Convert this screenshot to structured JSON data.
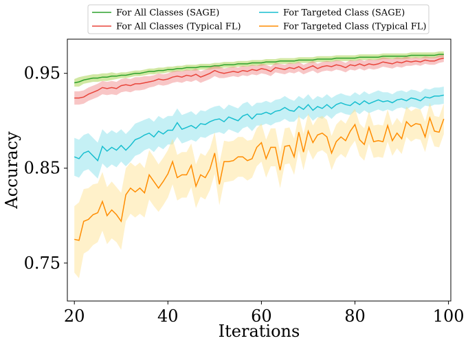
{
  "chart_data": {
    "type": "line",
    "xlabel": "Iterations",
    "ylabel": "Accuracy",
    "xlim": [
      18.5,
      100.5
    ],
    "ylim": [
      0.71,
      0.986
    ],
    "xticks": [
      20,
      40,
      60,
      80,
      100
    ],
    "yticks": [
      0.75,
      0.85,
      0.95
    ],
    "ytick_labels": [
      "0.75",
      "0.85",
      "0.95"
    ],
    "legend_position": "top (above plot), 2 columns",
    "grid": false,
    "x_start": 20,
    "series": [
      {
        "name": "For All Classes (SAGE)",
        "color": "#2ca02c",
        "band_color": "#9acd32",
        "values": [
          0.94,
          0.941,
          0.943,
          0.944,
          0.945,
          0.945,
          0.946,
          0.946,
          0.947,
          0.947,
          0.948,
          0.948,
          0.949,
          0.95,
          0.95,
          0.951,
          0.952,
          0.952,
          0.953,
          0.953,
          0.954,
          0.954,
          0.955,
          0.955,
          0.956,
          0.956,
          0.956,
          0.957,
          0.957,
          0.957,
          0.958,
          0.958,
          0.959,
          0.959,
          0.959,
          0.96,
          0.96,
          0.96,
          0.961,
          0.961,
          0.961,
          0.962,
          0.962,
          0.962,
          0.963,
          0.963,
          0.963,
          0.963,
          0.964,
          0.964,
          0.964,
          0.964,
          0.965,
          0.965,
          0.965,
          0.965,
          0.966,
          0.966,
          0.966,
          0.966,
          0.966,
          0.967,
          0.967,
          0.967,
          0.967,
          0.967,
          0.968,
          0.968,
          0.968,
          0.968,
          0.968,
          0.968,
          0.969,
          0.969,
          0.969,
          0.969,
          0.969,
          0.969,
          0.97,
          0.97
        ],
        "band": [
          0.004,
          0.005,
          0.004,
          0.004,
          0.004,
          0.004,
          0.004,
          0.004,
          0.004,
          0.003,
          0.003,
          0.003,
          0.003,
          0.003,
          0.003,
          0.003,
          0.003,
          0.003,
          0.003,
          0.003,
          0.003,
          0.003,
          0.003,
          0.003,
          0.003,
          0.003,
          0.003,
          0.003,
          0.003,
          0.003,
          0.003,
          0.003,
          0.003,
          0.003,
          0.003,
          0.003,
          0.003,
          0.003,
          0.003,
          0.003,
          0.003,
          0.003,
          0.003,
          0.003,
          0.003,
          0.003,
          0.003,
          0.003,
          0.003,
          0.003,
          0.003,
          0.003,
          0.003,
          0.003,
          0.003,
          0.003,
          0.003,
          0.003,
          0.003,
          0.003,
          0.003,
          0.003,
          0.003,
          0.003,
          0.003,
          0.003,
          0.003,
          0.003,
          0.003,
          0.003,
          0.003,
          0.003,
          0.003,
          0.003,
          0.003,
          0.003,
          0.003,
          0.003,
          0.003,
          0.003
        ]
      },
      {
        "name": "For All Classes (Typical FL)",
        "color": "#e8443a",
        "band_color": "#f08080",
        "values": [
          0.924,
          0.924,
          0.925,
          0.928,
          0.93,
          0.932,
          0.935,
          0.934,
          0.935,
          0.934,
          0.937,
          0.938,
          0.937,
          0.939,
          0.939,
          0.94,
          0.941,
          0.942,
          0.944,
          0.943,
          0.944,
          0.946,
          0.947,
          0.946,
          0.948,
          0.947,
          0.949,
          0.946,
          0.948,
          0.95,
          0.953,
          0.951,
          0.95,
          0.951,
          0.952,
          0.951,
          0.953,
          0.952,
          0.954,
          0.953,
          0.955,
          0.954,
          0.952,
          0.956,
          0.955,
          0.954,
          0.956,
          0.955,
          0.957,
          0.954,
          0.956,
          0.958,
          0.955,
          0.957,
          0.958,
          0.957,
          0.959,
          0.958,
          0.956,
          0.959,
          0.958,
          0.96,
          0.958,
          0.96,
          0.959,
          0.96,
          0.962,
          0.961,
          0.96,
          0.962,
          0.961,
          0.963,
          0.962,
          0.963,
          0.962,
          0.964,
          0.963,
          0.963,
          0.965,
          0.966
        ],
        "band": [
          0.007,
          0.007,
          0.007,
          0.007,
          0.007,
          0.007,
          0.007,
          0.007,
          0.007,
          0.007,
          0.007,
          0.007,
          0.007,
          0.007,
          0.007,
          0.007,
          0.006,
          0.006,
          0.006,
          0.006,
          0.006,
          0.006,
          0.006,
          0.006,
          0.006,
          0.006,
          0.006,
          0.006,
          0.006,
          0.006,
          0.006,
          0.006,
          0.005,
          0.005,
          0.005,
          0.005,
          0.005,
          0.005,
          0.005,
          0.005,
          0.005,
          0.005,
          0.005,
          0.005,
          0.005,
          0.005,
          0.005,
          0.005,
          0.005,
          0.005,
          0.005,
          0.005,
          0.005,
          0.005,
          0.005,
          0.005,
          0.005,
          0.005,
          0.005,
          0.005,
          0.005,
          0.005,
          0.005,
          0.005,
          0.005,
          0.005,
          0.005,
          0.005,
          0.005,
          0.005,
          0.005,
          0.005,
          0.004,
          0.004,
          0.004,
          0.004,
          0.004,
          0.004,
          0.004,
          0.004
        ]
      },
      {
        "name": "For Targeted Class (SAGE)",
        "color": "#17becf",
        "band_color": "#7fdde8",
        "values": [
          0.862,
          0.86,
          0.866,
          0.868,
          0.863,
          0.858,
          0.873,
          0.868,
          0.872,
          0.869,
          0.874,
          0.869,
          0.874,
          0.88,
          0.882,
          0.885,
          0.887,
          0.883,
          0.889,
          0.886,
          0.89,
          0.89,
          0.898,
          0.891,
          0.893,
          0.895,
          0.892,
          0.897,
          0.896,
          0.899,
          0.901,
          0.902,
          0.899,
          0.904,
          0.902,
          0.9,
          0.905,
          0.907,
          0.902,
          0.907,
          0.907,
          0.909,
          0.907,
          0.91,
          0.911,
          0.914,
          0.911,
          0.91,
          0.915,
          0.912,
          0.917,
          0.911,
          0.915,
          0.913,
          0.917,
          0.913,
          0.917,
          0.919,
          0.917,
          0.916,
          0.92,
          0.917,
          0.921,
          0.918,
          0.92,
          0.922,
          0.92,
          0.921,
          0.919,
          0.922,
          0.923,
          0.921,
          0.924,
          0.923,
          0.921,
          0.925,
          0.924,
          0.926,
          0.926,
          0.927
        ],
        "band": [
          0.02,
          0.02,
          0.019,
          0.019,
          0.019,
          0.019,
          0.018,
          0.018,
          0.018,
          0.018,
          0.017,
          0.017,
          0.017,
          0.017,
          0.017,
          0.016,
          0.016,
          0.016,
          0.016,
          0.016,
          0.015,
          0.015,
          0.015,
          0.015,
          0.015,
          0.015,
          0.014,
          0.014,
          0.014,
          0.014,
          0.014,
          0.014,
          0.013,
          0.013,
          0.013,
          0.013,
          0.013,
          0.013,
          0.013,
          0.012,
          0.012,
          0.012,
          0.012,
          0.012,
          0.012,
          0.012,
          0.012,
          0.011,
          0.011,
          0.011,
          0.011,
          0.011,
          0.011,
          0.011,
          0.011,
          0.011,
          0.01,
          0.01,
          0.01,
          0.01,
          0.01,
          0.01,
          0.01,
          0.01,
          0.01,
          0.01,
          0.01,
          0.009,
          0.009,
          0.009,
          0.009,
          0.009,
          0.009,
          0.009,
          0.009,
          0.009,
          0.009,
          0.009,
          0.009,
          0.009
        ]
      },
      {
        "name": "For Targeted Class (Typical FL)",
        "color": "#ff8c00",
        "band_color": "#ffe08a",
        "values": [
          0.775,
          0.774,
          0.794,
          0.796,
          0.801,
          0.803,
          0.815,
          0.8,
          0.806,
          0.801,
          0.794,
          0.822,
          0.829,
          0.825,
          0.829,
          0.824,
          0.843,
          0.836,
          0.829,
          0.836,
          0.844,
          0.857,
          0.84,
          0.843,
          0.843,
          0.853,
          0.831,
          0.843,
          0.84,
          0.849,
          0.866,
          0.833,
          0.857,
          0.857,
          0.858,
          0.862,
          0.862,
          0.858,
          0.86,
          0.872,
          0.877,
          0.86,
          0.872,
          0.872,
          0.848,
          0.873,
          0.874,
          0.862,
          0.888,
          0.867,
          0.889,
          0.877,
          0.885,
          0.887,
          0.883,
          0.866,
          0.878,
          0.883,
          0.879,
          0.889,
          0.896,
          0.88,
          0.875,
          0.893,
          0.878,
          0.879,
          0.878,
          0.895,
          0.879,
          0.887,
          0.881,
          0.899,
          0.894,
          0.897,
          0.896,
          0.883,
          0.903,
          0.889,
          0.888,
          0.902
        ],
        "band": [
          0.035,
          0.04,
          0.034,
          0.033,
          0.032,
          0.031,
          0.031,
          0.03,
          0.03,
          0.029,
          0.03,
          0.028,
          0.027,
          0.027,
          0.027,
          0.026,
          0.026,
          0.026,
          0.025,
          0.025,
          0.025,
          0.024,
          0.024,
          0.024,
          0.024,
          0.023,
          0.023,
          0.023,
          0.023,
          0.022,
          0.022,
          0.022,
          0.022,
          0.021,
          0.021,
          0.021,
          0.021,
          0.021,
          0.02,
          0.02,
          0.02,
          0.02,
          0.02,
          0.02,
          0.019,
          0.019,
          0.019,
          0.019,
          0.019,
          0.019,
          0.019,
          0.018,
          0.018,
          0.018,
          0.018,
          0.018,
          0.018,
          0.018,
          0.018,
          0.017,
          0.017,
          0.017,
          0.017,
          0.017,
          0.017,
          0.017,
          0.017,
          0.017,
          0.016,
          0.016,
          0.016,
          0.016,
          0.016,
          0.016,
          0.016,
          0.016,
          0.016,
          0.016,
          0.016,
          0.016
        ]
      }
    ]
  }
}
